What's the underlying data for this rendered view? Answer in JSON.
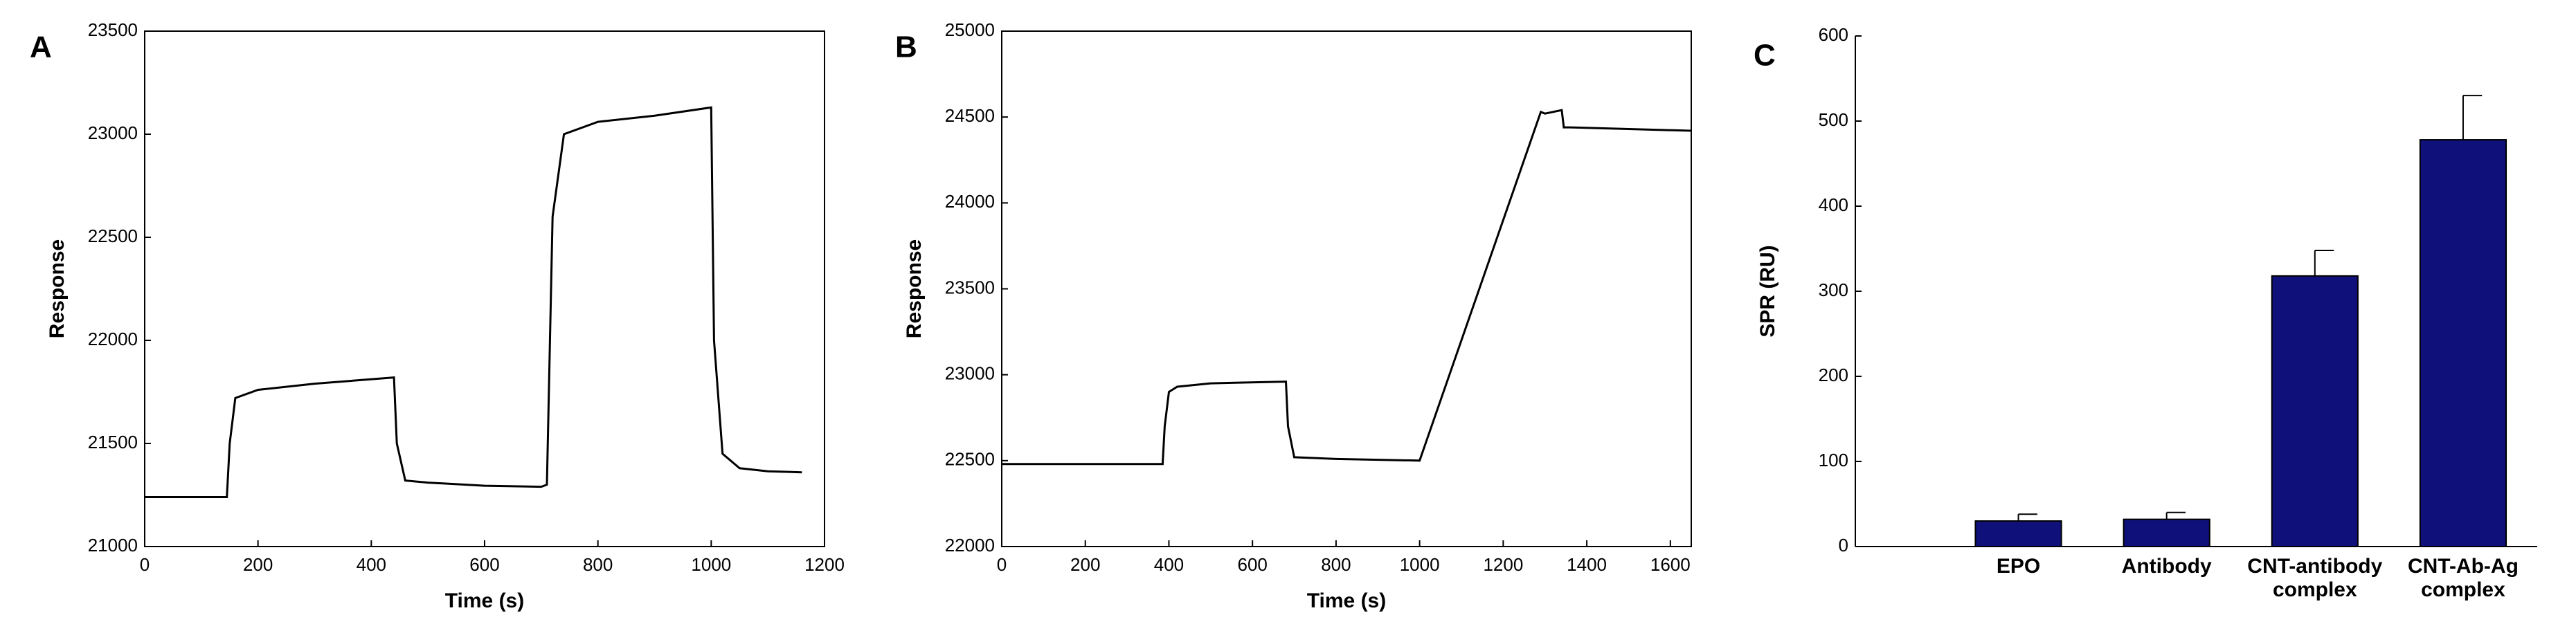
{
  "chart_data": [
    {
      "type": "line",
      "panel": "A",
      "xlabel": "Time (s)",
      "ylabel": "Response",
      "x": [
        0,
        145,
        150,
        160,
        200,
        300,
        440,
        445,
        460,
        500,
        600,
        700,
        710,
        720,
        740,
        800,
        900,
        1000,
        1005,
        1020,
        1050,
        1100,
        1160
      ],
      "values": [
        21240,
        21240,
        21500,
        21720,
        21760,
        21790,
        21820,
        21500,
        21320,
        21310,
        21295,
        21290,
        21300,
        22600,
        23000,
        23060,
        23090,
        23130,
        22000,
        21450,
        21380,
        21365,
        21360
      ],
      "color": "#000000",
      "xlim": [
        0,
        1200
      ],
      "xticks": [
        0,
        200,
        400,
        600,
        800,
        1000,
        1200
      ],
      "ylim": [
        21000,
        23500
      ],
      "yticks": [
        21000,
        21500,
        22000,
        22500,
        23000,
        23500
      ]
    },
    {
      "type": "line",
      "panel": "B",
      "xlabel": "Time (s)",
      "ylabel": "Response",
      "x": [
        0,
        385,
        390,
        400,
        420,
        500,
        680,
        685,
        700,
        800,
        1000,
        1290,
        1300,
        1340,
        1345,
        1360,
        1500,
        1650
      ],
      "values": [
        22480,
        22480,
        22700,
        22900,
        22930,
        22950,
        22960,
        22700,
        22520,
        22510,
        22500,
        24530,
        24520,
        24540,
        24440,
        24440,
        24430,
        24420
      ],
      "color": "#000000",
      "xlim": [
        0,
        1650
      ],
      "xticks": [
        0,
        200,
        400,
        600,
        800,
        1000,
        1200,
        1400,
        1600
      ],
      "ylim": [
        22000,
        25000
      ],
      "yticks": [
        22000,
        22500,
        23000,
        23500,
        24000,
        24500,
        25000
      ]
    },
    {
      "type": "bar",
      "panel": "C",
      "ylabel": "SPR (RU)",
      "categories": [
        "EPO",
        "Antibody",
        "CNT-antibody complex",
        "CNT-Ab-Ag complex"
      ],
      "values": [
        30,
        32,
        318,
        478
      ],
      "errors": [
        8,
        8,
        30,
        52
      ],
      "color": "#10107a",
      "ylim": [
        0,
        600
      ],
      "yticks": [
        0,
        100,
        200,
        300,
        400,
        500,
        600
      ]
    }
  ]
}
